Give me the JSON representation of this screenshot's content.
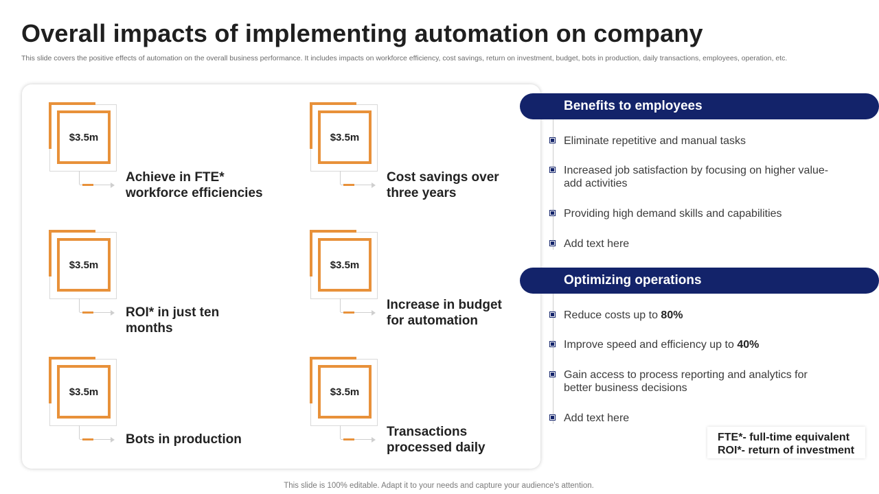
{
  "title": "Overall impacts of implementing automation on company",
  "subtitle": "This slide covers the positive effects of automation on the overall business performance. It includes impacts on workforce efficiency, cost savings, return on investment, budget, bots in production, daily transactions, employees, operation, etc.",
  "metrics": [
    {
      "value": "$3.5m",
      "label_line1": "Achieve in FTE*",
      "label_line2": "workforce efficiencies"
    },
    {
      "value": "$3.5m",
      "label_line1": "Cost savings over",
      "label_line2": "three years"
    },
    {
      "value": "$3.5m",
      "label_line1": "ROI* in just ten months",
      "label_line2": ""
    },
    {
      "value": "$3.5m",
      "label_line1": "Increase in budget",
      "label_line2": "for automation"
    },
    {
      "value": "$3.5m",
      "label_line1": "Bots in production",
      "label_line2": ""
    },
    {
      "value": "$3.5m",
      "label_line1": "Transactions",
      "label_line2": "processed daily"
    }
  ],
  "benefits": {
    "heading": "Benefits to employees",
    "items": [
      "Eliminate repetitive and  manual tasks",
      "Increased job satisfaction by focusing on higher value-add activities",
      "Providing high demand skills and capabilities",
      "Add text here"
    ]
  },
  "operations": {
    "heading": "Optimizing operations",
    "items": [
      {
        "text": "Reduce costs up to ",
        "bold": "80%"
      },
      {
        "text": "Improve speed and efficiency up to ",
        "bold": "40%"
      },
      {
        "text": "Gain access to process reporting and analytics for better business decisions",
        "bold": ""
      },
      {
        "text": "Add text here",
        "bold": ""
      }
    ]
  },
  "legend": {
    "line1": "FTE*- full-time equivalent",
    "line2": "ROI*- return of investment"
  },
  "footer": "This slide is 100% editable. Adapt it to your needs and capture your audience's attention.",
  "colors": {
    "accent": "#e8913a",
    "navy": "#13236a"
  }
}
